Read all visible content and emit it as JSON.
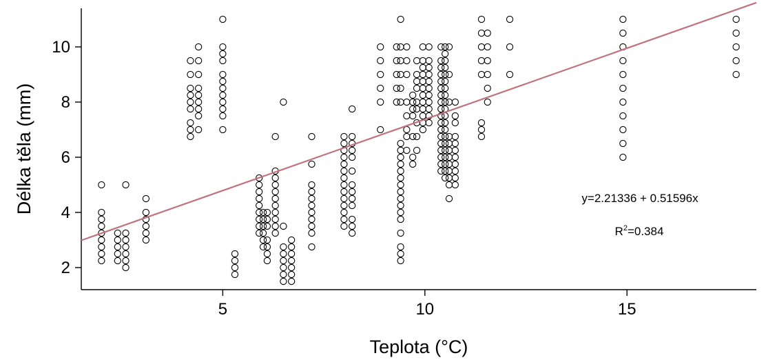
{
  "chart_data": {
    "type": "scatter",
    "title": "",
    "xlabel": "Teplota (°C)",
    "ylabel": "Délka těla (mm)",
    "xlim": [
      1.5,
      18.2
    ],
    "ylim": [
      1.2,
      11.4
    ],
    "xticks": [
      5,
      10,
      15
    ],
    "yticks": [
      2,
      4,
      6,
      8,
      10
    ],
    "grid": false,
    "regression": {
      "intercept": 2.21336,
      "slope": 0.51596,
      "color": "#c0727d"
    },
    "annotations": {
      "equation": "y=2.21336 + 0.51596x",
      "r2_prefix": "R",
      "r2_sup": "2",
      "r2_value": "=0.384"
    },
    "groups": [
      {
        "x": 2.0,
        "y": [
          5.0,
          4.0,
          3.75,
          3.5,
          3.25,
          3.0,
          2.75,
          2.5,
          2.25
        ]
      },
      {
        "x": 2.4,
        "y": [
          3.25,
          3.0,
          2.75,
          2.5,
          2.25
        ]
      },
      {
        "x": 2.6,
        "y": [
          5.0,
          3.25,
          3.0,
          2.75,
          2.5,
          2.25,
          2.0
        ]
      },
      {
        "x": 3.1,
        "y": [
          4.5,
          4.0,
          3.75,
          3.5,
          3.25,
          3.0
        ]
      },
      {
        "x": 4.2,
        "y": [
          9.5,
          9.0,
          8.5,
          8.25,
          8.0,
          7.75,
          7.25,
          7.0,
          6.75
        ]
      },
      {
        "x": 4.4,
        "y": [
          10.0,
          9.5,
          9.0,
          8.5,
          8.25,
          8.0,
          7.75,
          7.5,
          7.0
        ]
      },
      {
        "x": 5.0,
        "y": [
          11.0,
          10.0,
          9.75,
          9.5,
          9.0,
          8.75,
          8.5,
          8.25,
          8.0,
          7.75,
          7.5,
          7.0
        ]
      },
      {
        "x": 5.3,
        "y": [
          2.5,
          2.25,
          2.0,
          1.75
        ]
      },
      {
        "x": 5.9,
        "y": [
          5.25,
          5.0,
          4.75,
          4.5,
          4.25,
          4.0,
          3.75,
          3.5,
          3.25
        ]
      },
      {
        "x": 6.0,
        "y": [
          4.0,
          3.75,
          3.5,
          3.25,
          3.0,
          2.75
        ]
      },
      {
        "x": 6.1,
        "y": [
          4.0,
          3.75,
          3.5,
          3.0,
          2.75,
          2.5,
          2.25
        ]
      },
      {
        "x": 6.3,
        "y": [
          6.75,
          5.5,
          5.25,
          5.0,
          4.75,
          4.5,
          4.25,
          4.0,
          3.75,
          3.5,
          3.25
        ]
      },
      {
        "x": 6.5,
        "y": [
          8.0,
          3.5,
          2.75,
          2.5,
          2.25,
          2.0,
          1.75,
          1.5
        ]
      },
      {
        "x": 6.7,
        "y": [
          3.0,
          2.75,
          2.5,
          2.25,
          2.0,
          1.75,
          1.5
        ]
      },
      {
        "x": 7.2,
        "y": [
          6.75,
          5.75,
          5.0,
          4.75,
          4.5,
          4.25,
          4.0,
          3.75,
          3.5,
          3.25,
          2.75
        ]
      },
      {
        "x": 8.0,
        "y": [
          6.75,
          6.5,
          6.25,
          6.0,
          5.75,
          5.5,
          5.25,
          5.0,
          4.75,
          4.5,
          4.25,
          4.0,
          3.75,
          3.5
        ]
      },
      {
        "x": 8.2,
        "y": [
          7.75,
          6.75,
          6.5,
          6.25,
          6.0,
          5.5,
          5.0,
          4.75,
          4.5,
          4.25,
          3.75,
          3.5,
          3.25
        ]
      },
      {
        "x": 8.9,
        "y": [
          10.0,
          9.5,
          9.0,
          8.5,
          8.0,
          7.0
        ]
      },
      {
        "x": 9.3,
        "y": [
          10.0,
          9.5,
          9.0,
          8.5,
          8.0
        ]
      },
      {
        "x": 9.4,
        "y": [
          11.0,
          10.0,
          9.5,
          9.0,
          8.5,
          8.0,
          6.5,
          6.25,
          6.0,
          5.75,
          5.5,
          5.25,
          5.0,
          4.75,
          4.5,
          4.25,
          4.0,
          3.75,
          3.25,
          2.75,
          2.5,
          2.25
        ]
      },
      {
        "x": 9.55,
        "y": [
          10.0,
          9.5,
          9.0,
          8.0,
          7.5,
          7.0,
          6.75,
          6.25
        ]
      },
      {
        "x": 9.7,
        "y": [
          8.25,
          8.0,
          7.75,
          7.5,
          6.75,
          6.0,
          5.75
        ]
      },
      {
        "x": 9.8,
        "y": [
          9.5,
          9.0,
          8.75,
          8.5,
          8.0,
          7.75,
          7.25,
          6.75,
          6.25
        ]
      },
      {
        "x": 9.95,
        "y": [
          10.0,
          9.5,
          9.25,
          9.0,
          8.75,
          8.5,
          8.25,
          8.0,
          7.75,
          7.5,
          7.25,
          7.0
        ]
      },
      {
        "x": 10.1,
        "y": [
          10.0,
          9.5,
          9.25,
          9.0,
          8.75,
          8.5,
          8.25,
          8.0,
          7.75,
          7.5,
          7.25
        ]
      },
      {
        "x": 10.4,
        "y": [
          10.0,
          9.5,
          9.25,
          9.0,
          8.75,
          8.5,
          8.25,
          8.0,
          7.75,
          7.5,
          7.25,
          7.0,
          6.75,
          6.5,
          6.25,
          6.0,
          5.75,
          5.5
        ]
      },
      {
        "x": 10.5,
        "y": [
          10.0,
          9.75,
          9.5,
          9.25,
          9.0,
          8.75,
          8.5,
          8.25,
          8.0,
          7.75,
          7.5,
          7.25,
          7.0,
          6.75,
          6.5,
          6.25,
          6.0,
          5.75,
          5.5,
          5.25
        ]
      },
      {
        "x": 10.6,
        "y": [
          10.0,
          9.0,
          8.0,
          6.75,
          6.5,
          6.25,
          6.0,
          5.75,
          5.5,
          5.25,
          5.0,
          4.5
        ]
      },
      {
        "x": 10.75,
        "y": [
          8.0,
          7.5,
          7.25,
          6.75,
          6.5,
          6.25,
          6.0,
          5.75,
          5.5,
          5.25,
          5.0
        ]
      },
      {
        "x": 11.4,
        "y": [
          11.0,
          10.5,
          10.0,
          9.5,
          9.0,
          7.25,
          7.0,
          6.75
        ]
      },
      {
        "x": 11.55,
        "y": [
          10.5,
          10.0,
          9.5,
          9.0,
          8.5,
          8.0
        ]
      },
      {
        "x": 12.1,
        "y": [
          11.0,
          10.0,
          9.0
        ]
      },
      {
        "x": 14.9,
        "y": [
          11.0,
          10.5,
          10.0,
          9.5,
          9.0,
          8.5,
          8.0,
          7.5,
          7.0,
          6.5,
          6.0
        ]
      },
      {
        "x": 17.7,
        "y": [
          11.0,
          10.5,
          10.0,
          9.5,
          9.0
        ]
      }
    ]
  }
}
